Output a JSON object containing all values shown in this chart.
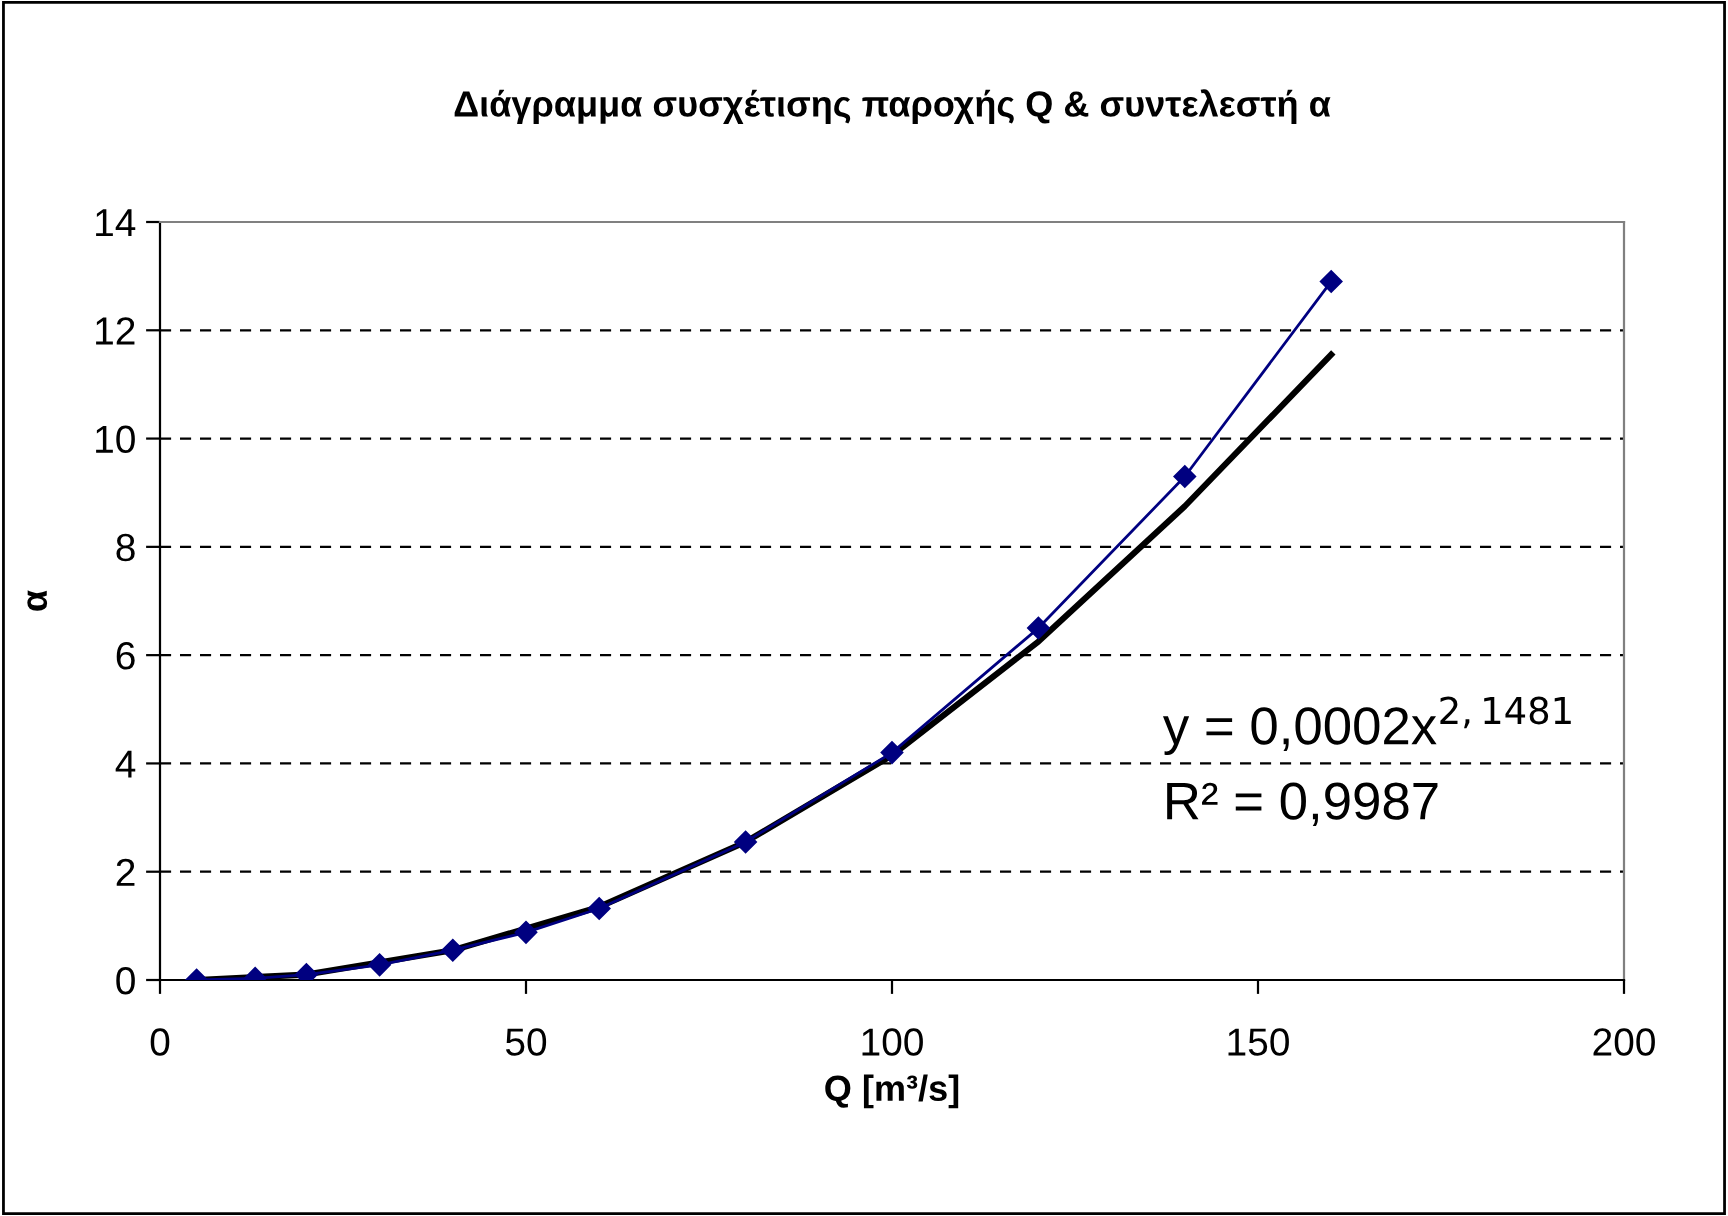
{
  "chart_data": {
    "type": "line",
    "title": "Διάγραμμα συσχέτισης παροχής Q & συντελεστή α",
    "xlabel": "Q [m³/s]",
    "ylabel": "α",
    "xlim": [
      0,
      200
    ],
    "xticks": [
      0,
      50,
      100,
      150,
      200
    ],
    "ylim": [
      0,
      14
    ],
    "yticks": [
      0,
      2,
      4,
      6,
      8,
      10,
      12,
      14
    ],
    "grid": "y",
    "legend": false,
    "series": [
      {
        "color": "#000080",
        "marker": "diamond",
        "x": [
          5,
          13,
          20,
          30,
          40,
          50,
          60,
          80,
          100,
          120,
          140,
          160
        ],
        "values": [
          0,
          0.03,
          0.1,
          0.28,
          0.55,
          0.88,
          1.32,
          2.55,
          4.2,
          6.5,
          9.3,
          12.9
        ]
      },
      {
        "color": "#000000",
        "marker": "none",
        "x": [
          5,
          20,
          40,
          60,
          80,
          100,
          120,
          140,
          160
        ],
        "values": [
          0,
          0.1,
          0.55,
          1.35,
          2.55,
          4.15,
          6.25,
          8.75,
          11.55
        ]
      }
    ],
    "annotations": [
      "y = 0,0002x$^{2,1481}$",
      "R² = 0,9987"
    ]
  }
}
